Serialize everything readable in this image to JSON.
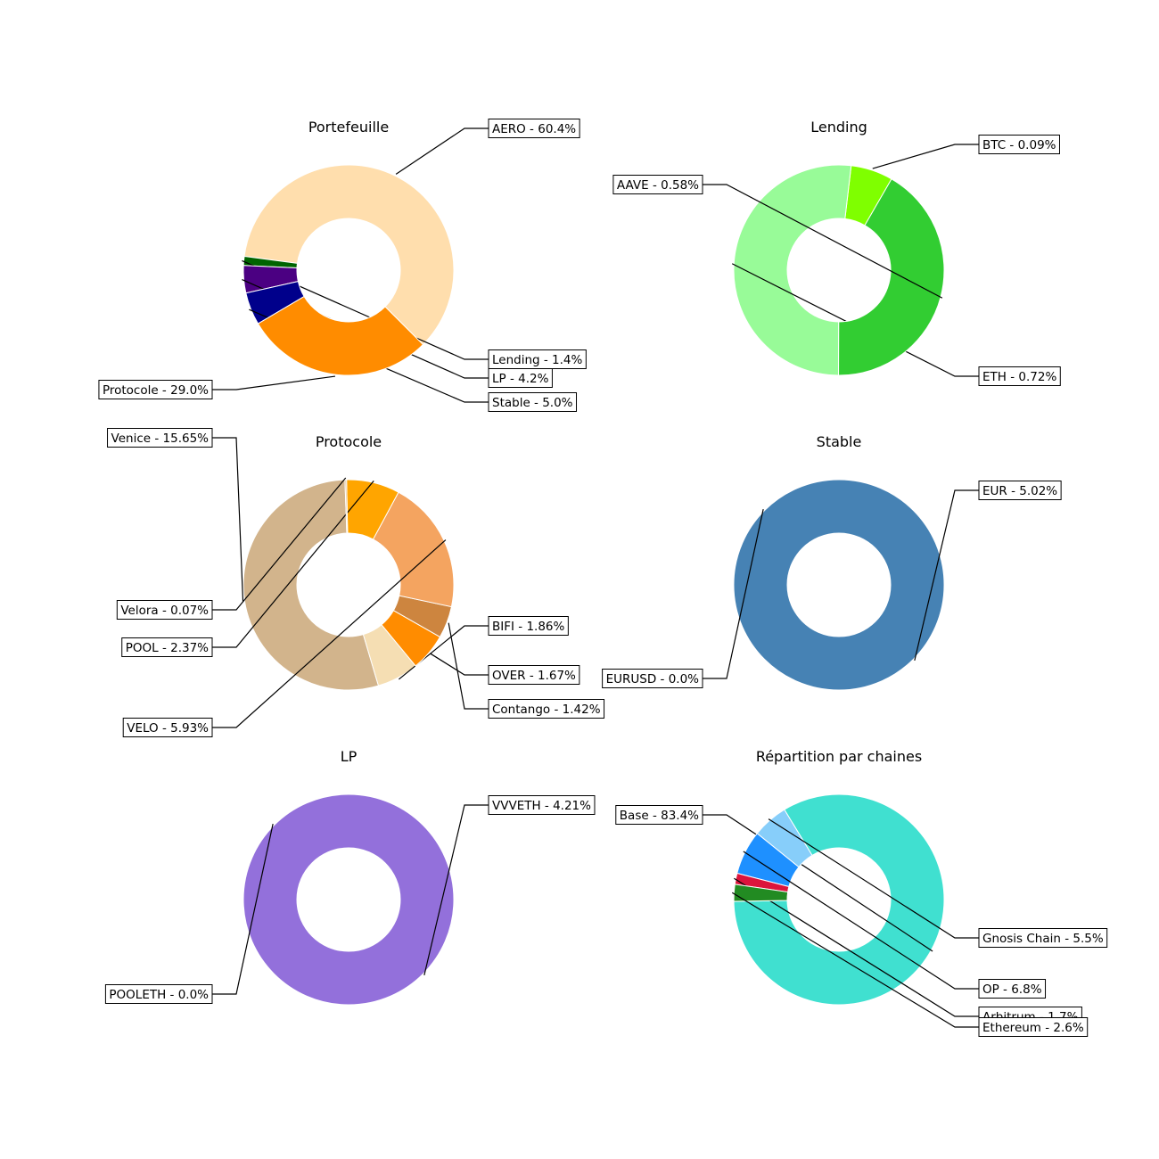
{
  "chart_data": [
    {
      "type": "pie",
      "title": "Portefeuille",
      "slices": [
        {
          "label": "AERO - 60.4%",
          "value": 60.4,
          "color": "#FFDEAD"
        },
        {
          "label": "Lending - 1.4%",
          "value": 1.4,
          "color": "#006400"
        },
        {
          "label": "LP - 4.2%",
          "value": 4.2,
          "color": "#4B0082"
        },
        {
          "label": "Stable - 5.0%",
          "value": 5.0,
          "color": "#00008B"
        },
        {
          "label": "Protocole - 29.0%",
          "value": 29.0,
          "color": "#FF8C00"
        }
      ]
    },
    {
      "type": "pie",
      "title": "Lending",
      "slices": [
        {
          "label": "BTC - 0.09%",
          "value": 0.09,
          "color": "#7FFF00"
        },
        {
          "label": "ETH - 0.72%",
          "value": 0.72,
          "color": "#98FB98"
        },
        {
          "label": "AAVE - 0.58%",
          "value": 0.58,
          "color": "#32CD32"
        }
      ]
    },
    {
      "type": "pie",
      "title": "Protocole",
      "slices": [
        {
          "label": "Venice - 15.65%",
          "value": 15.65,
          "color": "#D2B48C"
        },
        {
          "label": "BIFI - 1.86%",
          "value": 1.86,
          "color": "#F5DEB3"
        },
        {
          "label": "OVER - 1.67%",
          "value": 1.67,
          "color": "#FF8C00"
        },
        {
          "label": "Contango - 1.42%",
          "value": 1.42,
          "color": "#CD853F"
        },
        {
          "label": "VELO - 5.93%",
          "value": 5.93,
          "color": "#F4A460"
        },
        {
          "label": "POOL - 2.37%",
          "value": 2.37,
          "color": "#FFA500"
        },
        {
          "label": "Velora - 0.07%",
          "value": 0.07,
          "color": "#DEB887"
        }
      ]
    },
    {
      "type": "pie",
      "title": "Stable",
      "slices": [
        {
          "label": "EUR - 5.02%",
          "value": 5.02,
          "color": "#4682B4"
        },
        {
          "label": "EURUSD - 0.0%",
          "value": 0.0,
          "color": "#4682B4"
        }
      ]
    },
    {
      "type": "pie",
      "title": "LP",
      "slices": [
        {
          "label": "VVVETH - 4.21%",
          "value": 4.21,
          "color": "#9370DB"
        },
        {
          "label": "POOLETH - 0.0%",
          "value": 0.0,
          "color": "#9370DB"
        }
      ]
    },
    {
      "type": "pie",
      "title": "Répartition par chaines",
      "slices": [
        {
          "label": "Base - 83.4%",
          "value": 83.4,
          "color": "#40E0D0"
        },
        {
          "label": "Gnosis Chain - 5.5%",
          "value": 5.5,
          "color": "#87CEFA"
        },
        {
          "label": "OP - 6.8%",
          "value": 6.8,
          "color": "#1E90FF"
        },
        {
          "label": "Arbitrum - 1.7%",
          "value": 1.7,
          "color": "#DC143C"
        },
        {
          "label": "Ethereum - 2.6%",
          "value": 2.6,
          "color": "#228B22"
        }
      ]
    }
  ]
}
